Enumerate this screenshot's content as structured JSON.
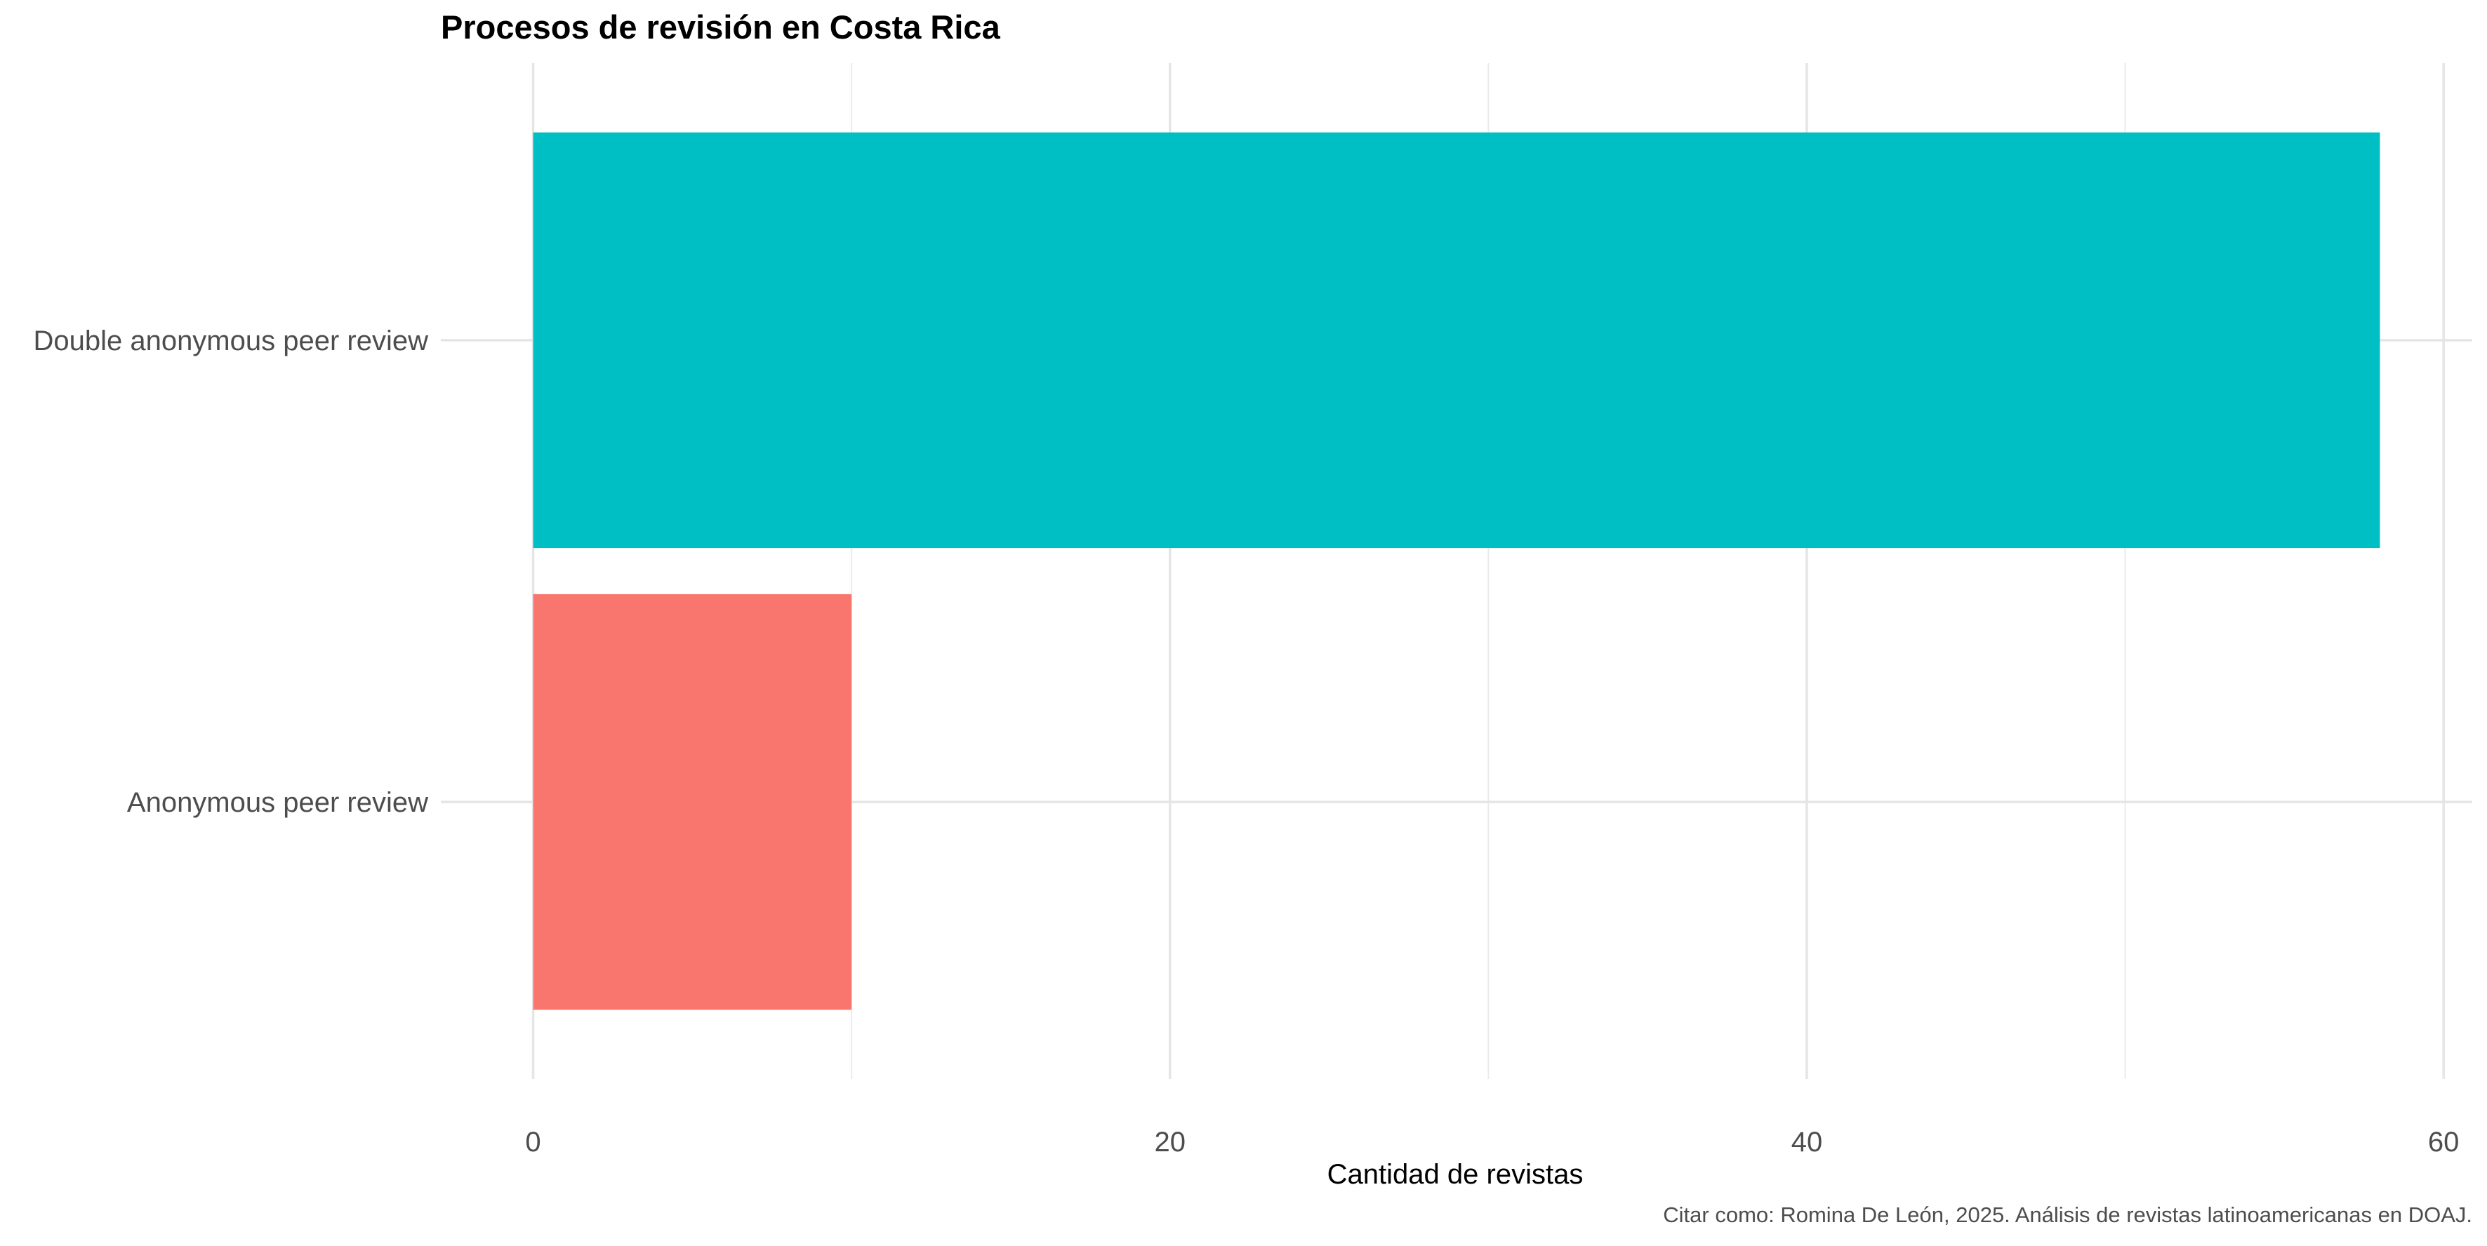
{
  "chart_data": {
    "type": "bar",
    "orientation": "horizontal",
    "title": "Procesos de revisión en Costa Rica",
    "xlabel": "Cantidad de revistas",
    "ylabel": "",
    "caption": "Citar como: Romina De León, 2025. Análisis de revistas latinoamericanas en DOAJ.",
    "categories": [
      "Double anonymous peer review",
      "Anonymous peer review"
    ],
    "values": [
      58,
      10
    ],
    "colors": [
      "#00BFC4",
      "#F8766D"
    ],
    "xlim": [
      -2.9,
      60.9
    ],
    "xticks": [
      0,
      20,
      40,
      60
    ],
    "xtick_labels": [
      "0",
      "20",
      "40",
      "60"
    ],
    "grid": true,
    "legend": "none"
  }
}
